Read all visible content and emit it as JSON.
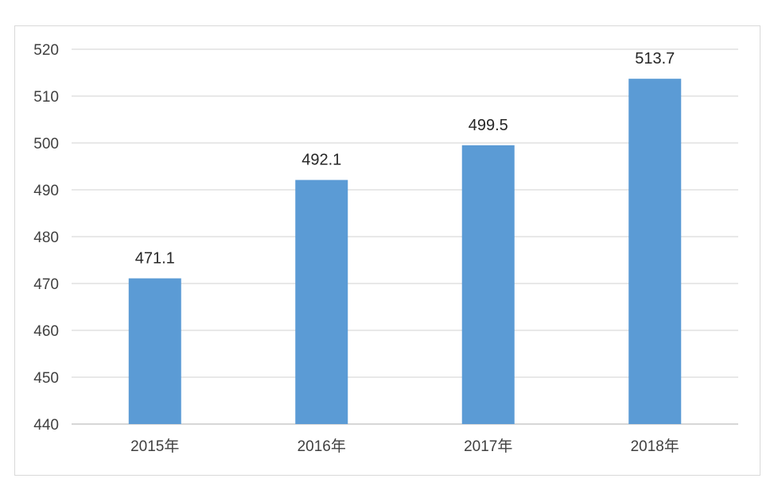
{
  "chart_data": {
    "type": "bar",
    "categories": [
      "2015年",
      "2016年",
      "2017年",
      "2018年"
    ],
    "values": [
      471.1,
      492.1,
      499.5,
      513.7
    ],
    "data_labels": [
      "471.1",
      "492.1",
      "499.5",
      "513.7"
    ],
    "ylim": [
      440,
      520
    ],
    "yticks": [
      440,
      450,
      460,
      470,
      480,
      490,
      500,
      510,
      520
    ],
    "ytick_labels": [
      "440",
      "450",
      "460",
      "470",
      "480",
      "490",
      "500",
      "510",
      "520"
    ],
    "grid": true,
    "legend": "none",
    "bar_color": "#5b9bd5"
  }
}
